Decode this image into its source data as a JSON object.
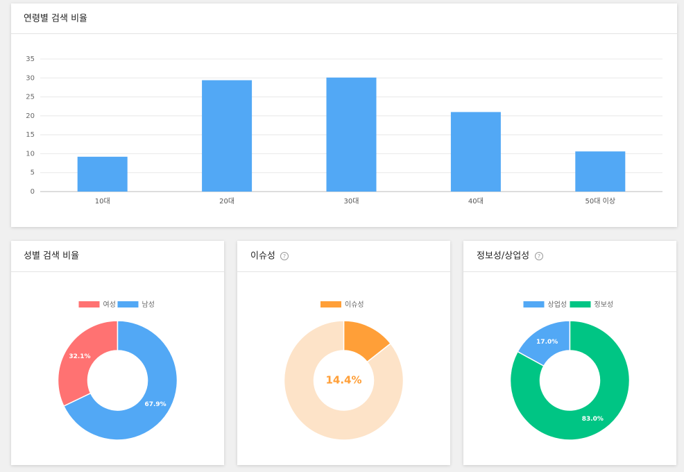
{
  "chart_data": [
    {
      "type": "bar",
      "title": "연령별 검색 비율",
      "categories": [
        "10대",
        "20대",
        "30대",
        "40대",
        "50대 이상"
      ],
      "values": [
        9.2,
        29.4,
        30.1,
        21,
        10.6
      ],
      "color": "#52a8f5",
      "ylim": [
        0,
        35
      ],
      "yticks": [
        0,
        5,
        10,
        15,
        20,
        25,
        30,
        35
      ],
      "grid": true
    },
    {
      "type": "pie",
      "title": "성별 검색 비율",
      "categories": [
        "여성",
        "남성"
      ],
      "values": [
        32.1,
        67.9
      ],
      "colors": [
        "#ff7272",
        "#52a8f5"
      ],
      "value_labels": [
        "32.1%",
        "67.9%"
      ],
      "clockwise": false
    },
    {
      "type": "pie",
      "title": "이슈성",
      "categories": [
        "이슈성",
        null
      ],
      "values": [
        14.4,
        85.6
      ],
      "colors": [
        "#ff9f38",
        "#fde3c8"
      ],
      "center_label": "14.4%",
      "clockwise": true
    },
    {
      "type": "pie",
      "title": "정보성/상업성",
      "categories": [
        "상업성",
        "정보성"
      ],
      "values": [
        17.0,
        83.0
      ],
      "colors": [
        "#52a8f5",
        "#00c584"
      ],
      "value_labels": [
        "17.0%",
        "83.0%"
      ],
      "clockwise": false
    }
  ]
}
